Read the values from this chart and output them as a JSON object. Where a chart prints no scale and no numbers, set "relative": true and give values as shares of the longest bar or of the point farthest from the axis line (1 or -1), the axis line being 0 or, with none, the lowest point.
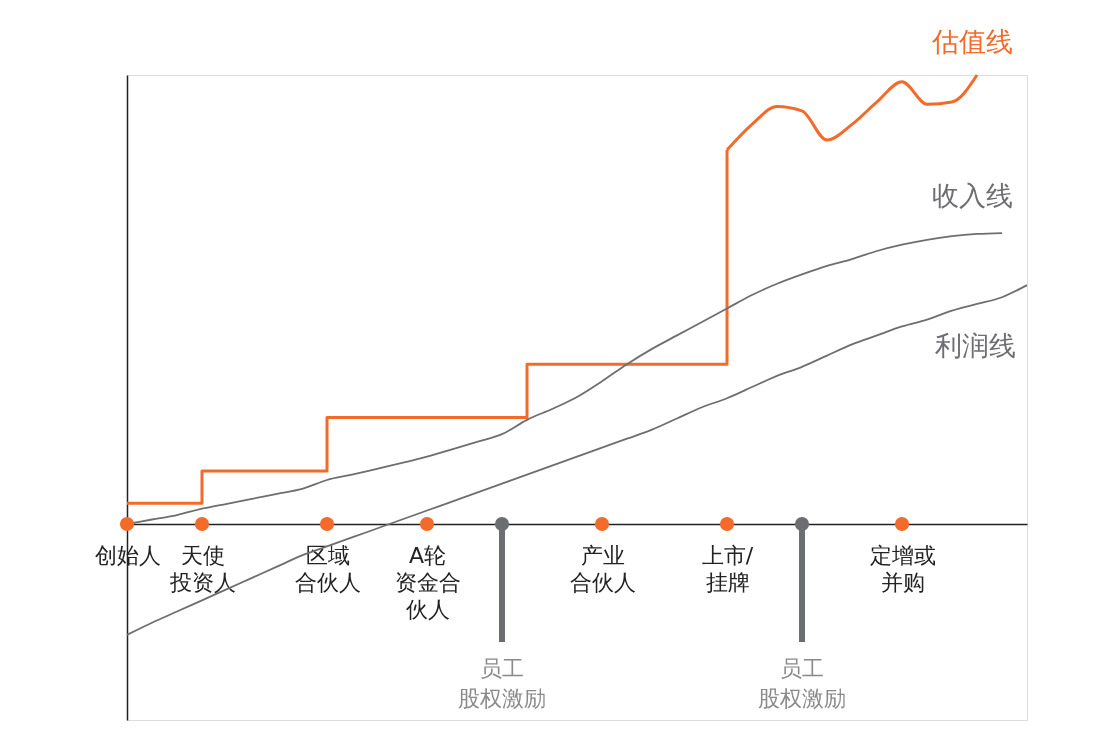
{
  "chart_data": {
    "type": "line",
    "relative": true,
    "categories": [
      "创始人",
      null,
      null,
      "天使投资人",
      null,
      null,
      null,
      null,
      "区域合伙人",
      null,
      null,
      null,
      "A轮资金合伙人",
      null,
      null,
      null,
      null,
      null,
      null,
      "产业合伙人",
      null,
      null,
      null,
      null,
      "上市/挂牌",
      null,
      null,
      null,
      null,
      null,
      null,
      "定增或并购",
      null,
      null,
      null,
      null,
      null
    ],
    "series": [
      {
        "type": "step",
        "color": "#f26b2a",
        "values": [
          0.046,
          0.046,
          0.046,
          0.118,
          0.118,
          0.118,
          0.118,
          0.118,
          0.237,
          0.237,
          0.237,
          0.237,
          0.237,
          0.237,
          0.237,
          0.237,
          0.356,
          0.356,
          0.356,
          0.356,
          0.356,
          0.356,
          0.356,
          0.356,
          0.833,
          null,
          null,
          null,
          null,
          null,
          null,
          null,
          null,
          null,
          null,
          null,
          null
        ]
      },
      {
        "name": "估值线",
        "color": "#f26b2a",
        "values": [
          null,
          null,
          null,
          null,
          null,
          null,
          null,
          null,
          null,
          null,
          null,
          null,
          null,
          null,
          null,
          null,
          null,
          null,
          null,
          null,
          null,
          null,
          null,
          null,
          0.833,
          0.89,
          0.93,
          0.92,
          0.855,
          0.89,
          0.94,
          0.985,
          0.935,
          0.94,
          1.0,
          null,
          null
        ]
      },
      {
        "name": "收入线",
        "color": "#6d6e71",
        "values": [
          0,
          0.01,
          0.02,
          0.034,
          0.045,
          0.056,
          0.067,
          0.078,
          0.098,
          0.11,
          0.123,
          0.136,
          0.15,
          0.166,
          0.183,
          0.2,
          0.232,
          0.256,
          0.283,
          0.318,
          0.356,
          0.39,
          0.42,
          0.45,
          0.48,
          0.51,
          0.535,
          0.556,
          0.575,
          0.59,
          0.608,
          0.622,
          0.633,
          0.641,
          0.646,
          0.648,
          null
        ]
      },
      {
        "name": "利润线",
        "color": "#6d6e71",
        "values": [
          -0.247,
          -0.22,
          -0.195,
          -0.17,
          -0.145,
          -0.12,
          -0.095,
          -0.07,
          -0.05,
          -0.03,
          -0.01,
          0.01,
          0.03,
          0.05,
          0.07,
          0.09,
          0.11,
          0.13,
          0.15,
          0.17,
          0.19,
          0.21,
          0.235,
          0.26,
          0.28,
          0.305,
          0.33,
          0.35,
          0.375,
          0.4,
          0.42,
          0.44,
          0.455,
          0.475,
          0.49,
          0.505,
          0.532
        ]
      },
      {
        "type": "scatter",
        "marker": "circle",
        "values": [
          0,
          null,
          null,
          0,
          null,
          null,
          null,
          null,
          0,
          null,
          null,
          null,
          0,
          null,
          null,
          0,
          null,
          null,
          null,
          0,
          null,
          null,
          null,
          null,
          0,
          null,
          null,
          0,
          null,
          null,
          null,
          0,
          null,
          null,
          null,
          null,
          null
        ],
        "colors": [
          "#f26b2a",
          null,
          null,
          "#f26b2a",
          null,
          null,
          null,
          null,
          "#f26b2a",
          null,
          null,
          null,
          "#f26b2a",
          null,
          null,
          "#6d6e71",
          null,
          null,
          null,
          "#f26b2a",
          null,
          null,
          null,
          null,
          "#f26b2a",
          null,
          null,
          "#6d6e71",
          null,
          null,
          null,
          "#f26b2a",
          null,
          null,
          null,
          null,
          null
        ]
      }
    ],
    "annotations": [
      "员工股权激励",
      "员工股权激励"
    ]
  }
}
